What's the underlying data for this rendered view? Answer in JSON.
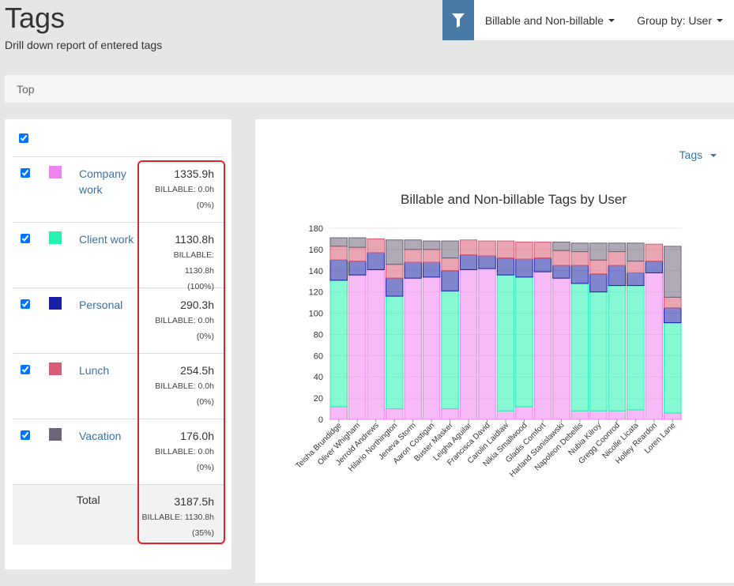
{
  "header": {
    "title": "Tags",
    "subtitle": "Drill down report of entered tags",
    "billable_filter": "Billable and Non-billable",
    "group_by": "Group by: User"
  },
  "breadcrumb": {
    "label": "Top"
  },
  "tags": [
    {
      "name": "Company work",
      "color": "#ee82ee",
      "hours": "1335.9h",
      "billable": "BILLABLE: 0.0h",
      "pct": "(0%)"
    },
    {
      "name": "Client work",
      "color": "#24f2b0",
      "hours": "1130.8h",
      "billable": "BILLABLE: 1130.8h (100%)",
      "pct": ""
    },
    {
      "name": "Personal",
      "color": "#1a20a6",
      "hours": "290.3h",
      "billable": "BILLABLE: 0.0h",
      "pct": "(0%)"
    },
    {
      "name": "Lunch",
      "color": "#d95b74",
      "hours": "254.5h",
      "billable": "BILLABLE: 0.0h",
      "pct": "(0%)"
    },
    {
      "name": "Vacation",
      "color": "#6d6578",
      "hours": "176.0h",
      "billable": "BILLABLE: 0.0h",
      "pct": "(0%)"
    }
  ],
  "total": {
    "label": "Total",
    "hours": "3187.5h",
    "billable": "BILLABLE: 1130.8h",
    "pct": "(35%)"
  },
  "chart_toggle": "Tags",
  "chart_data": {
    "type": "bar",
    "stacked": true,
    "title": "Billable and Non-billable Tags by User",
    "ylim": [
      0,
      180
    ],
    "yticks": [
      0,
      20,
      40,
      60,
      80,
      100,
      120,
      140,
      160,
      180
    ],
    "categories": [
      "Teisha Brundidge",
      "Oliver Whigham",
      "Jerrold Andrews",
      "Hilario Northington",
      "Jeneva Storm",
      "Aaron Costigan",
      "Buster Masker",
      "Leigha Aguilar",
      "Francisca David",
      "Carolin Laidlaw",
      "Nikia Smallwood",
      "Gladis Comfort",
      "Harland Stanislawski",
      "Napoleon Debellis",
      "Nubia Kilroy",
      "Gregg Coonrod",
      "Nicolle Licata",
      "Holley Reardon",
      "Loren Lane"
    ],
    "series": [
      {
        "name": "Company work",
        "color": "#ee82ee",
        "values": [
          12,
          136,
          141,
          10,
          133,
          134,
          10,
          141,
          142,
          8,
          12,
          139,
          133,
          8,
          8,
          8,
          9,
          138,
          6
        ]
      },
      {
        "name": "Client work",
        "color": "#24f2b0",
        "values": [
          119,
          0,
          0,
          106,
          0,
          0,
          111,
          0,
          0,
          128,
          122,
          0,
          0,
          120,
          112,
          118,
          117,
          0,
          85
        ]
      },
      {
        "name": "Personal",
        "color": "#1a20a6",
        "values": [
          19,
          13,
          16,
          17,
          15,
          14,
          19,
          14,
          12,
          16,
          17,
          13,
          12,
          17,
          17,
          19,
          12,
          11,
          14
        ]
      },
      {
        "name": "Lunch",
        "color": "#d95b74",
        "values": [
          13,
          13,
          13,
          13,
          12,
          12,
          12,
          14,
          14,
          16,
          16,
          15,
          14,
          13,
          13,
          13,
          11,
          16,
          10
        ]
      },
      {
        "name": "Vacation",
        "color": "#6d6578",
        "values": [
          8,
          9,
          0,
          23,
          9,
          8,
          16,
          0,
          0,
          0,
          0,
          0,
          8,
          8,
          16,
          8,
          17,
          0,
          48
        ]
      }
    ]
  }
}
